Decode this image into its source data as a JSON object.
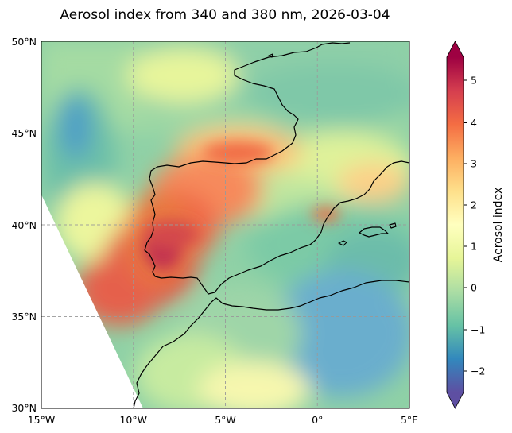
{
  "title": "Aerosol index from 340 and 380 nm, 2026-03-04",
  "map": {
    "lon_ticks": [
      "15°W",
      "10°W",
      "5°W",
      "0°",
      "5°E"
    ],
    "lat_ticks": [
      "50°N",
      "45°N",
      "40°N",
      "35°N",
      "30°N"
    ],
    "extent": {
      "lon": [
        -15,
        5
      ],
      "lat": [
        30,
        50
      ]
    },
    "gridlines": true
  },
  "colorbar": {
    "label": "Aerosol index",
    "ticks": [
      "5",
      "4",
      "3",
      "2",
      "1",
      "0",
      "−1",
      "−2"
    ],
    "range": [
      -2.7,
      5.6
    ],
    "colormap": "Spectral_r",
    "colors": [
      "#5e4fa2",
      "#3288bd",
      "#66c2a5",
      "#abdda4",
      "#e6f598",
      "#ffffbf",
      "#fee08b",
      "#fdae61",
      "#f46d43",
      "#d53e4f",
      "#9e0142"
    ]
  },
  "features": {
    "high_aerosol_plume": "southwest Iberia to Bay of Biscay",
    "coastline_color": "#000000",
    "swath_gap_color": "#ffffff"
  }
}
